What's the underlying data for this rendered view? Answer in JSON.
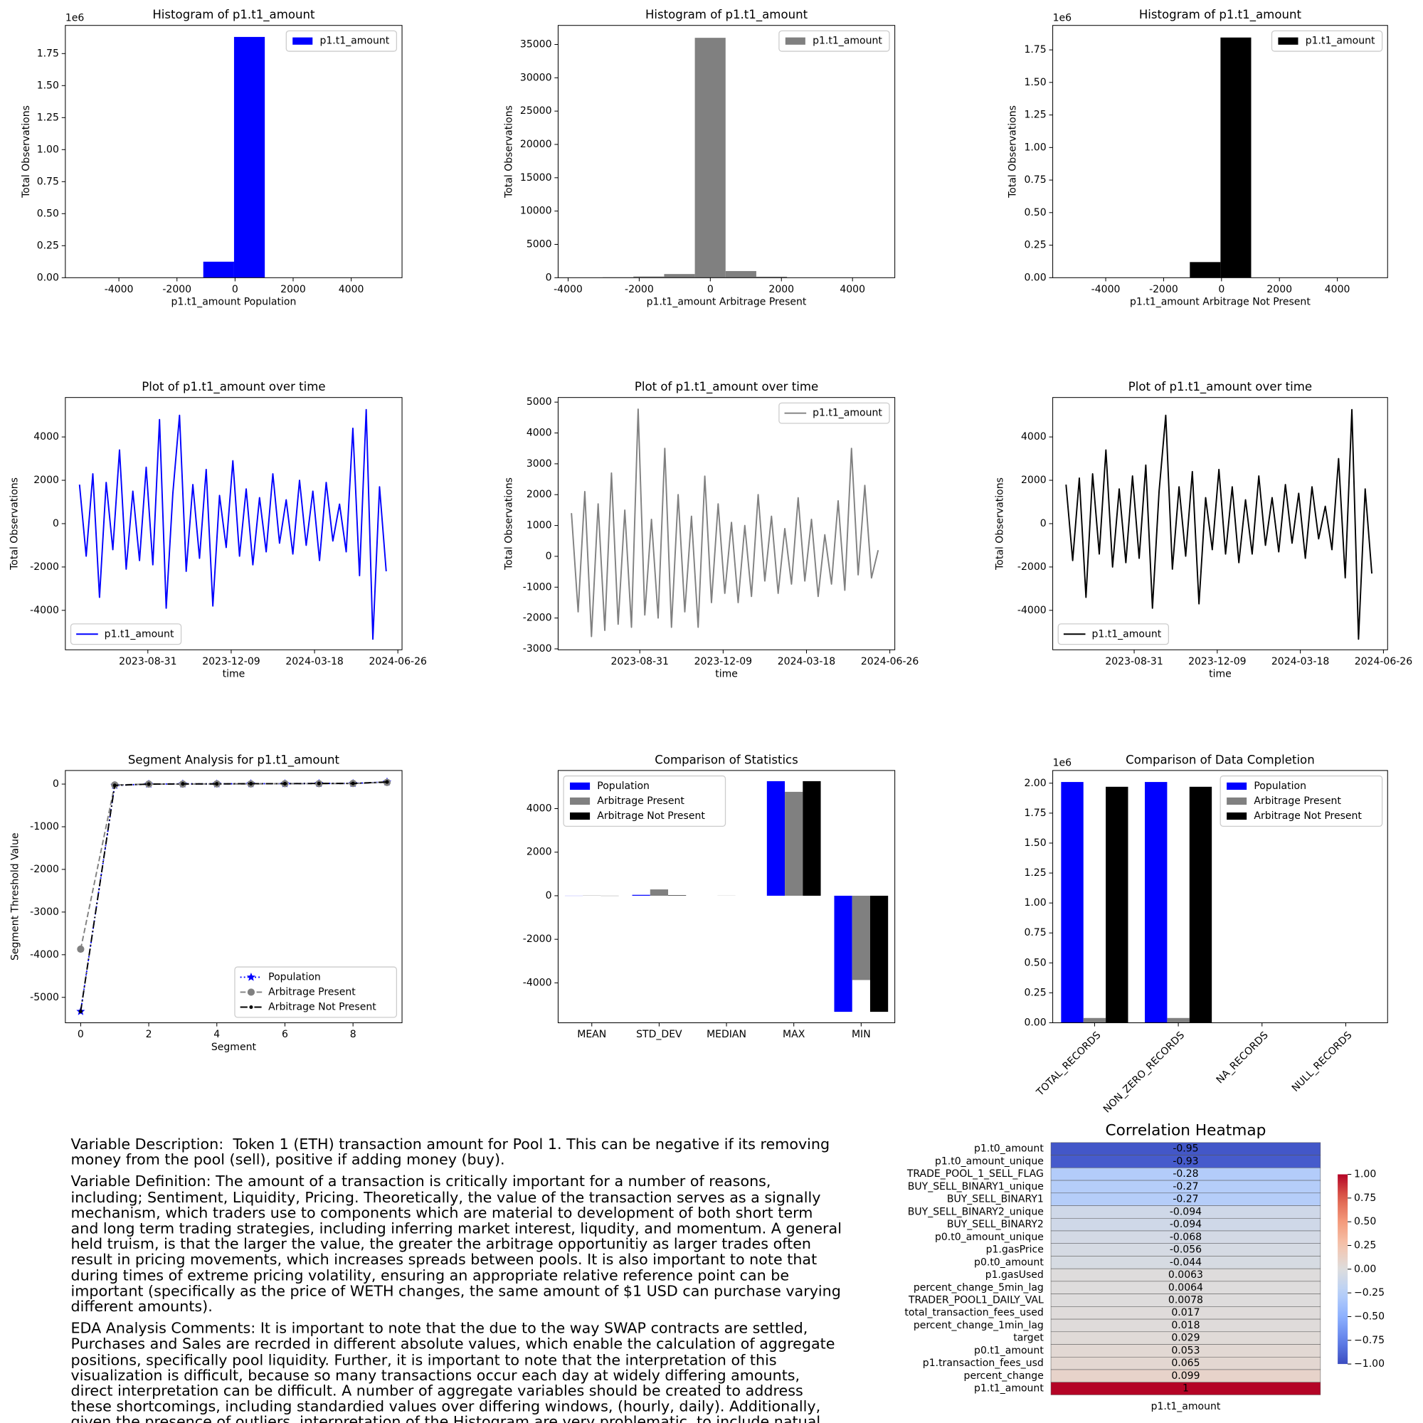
{
  "chart_data": [
    {
      "type": "histogram",
      "title": "Histogram of p1.t1_amount",
      "xlabel": "p1.t1_amount Population",
      "ylabel": "Total Observations",
      "bins": [
        -5330,
        -4271,
        -3212,
        -2153,
        -1094,
        -35,
        1024,
        2083,
        3142,
        4201,
        5260
      ],
      "series": [
        {
          "name": "p1.t1_amount",
          "color": "#0000ff",
          "values": [
            20,
            40,
            150,
            1200,
            125000,
            1880000,
            1500,
            200,
            40,
            20
          ]
        }
      ],
      "xlim": [
        -5844,
        5750
      ],
      "xticks": [
        -4000,
        -2000,
        0,
        2000,
        4000
      ],
      "ylim": [
        0,
        1970000
      ],
      "y_offset_label": "1e6",
      "yticks": [
        {
          "value": 0,
          "label": "0.00"
        },
        {
          "value": 250000,
          "label": "0.25"
        },
        {
          "value": 500000,
          "label": "0.50"
        },
        {
          "value": 750000,
          "label": "0.75"
        },
        {
          "value": 1000000,
          "label": "1.00"
        },
        {
          "value": 1250000,
          "label": "1.25"
        },
        {
          "value": 1500000,
          "label": "1.50"
        },
        {
          "value": 1750000,
          "label": "1.75"
        }
      ],
      "legend": "upper right"
    },
    {
      "type": "histogram",
      "title": "Histogram of p1.t1_amount",
      "xlabel": "p1.t1_amount Arbitrage Present",
      "ylabel": "Total Observations",
      "bins": [
        -3891,
        -3027,
        -2163,
        -1299,
        -435,
        429,
        1293,
        2157,
        3021,
        3885,
        4749
      ],
      "series": [
        {
          "name": "p1.t1_amount",
          "color": "#808080",
          "values": [
            20,
            60,
            180,
            550,
            36000,
            1000,
            150,
            30,
            10,
            5
          ]
        }
      ],
      "xlim": [
        -4281,
        5190
      ],
      "xticks": [
        -4000,
        -2000,
        0,
        2000,
        4000
      ],
      "ylim": [
        0,
        37860
      ],
      "yticks": [
        0,
        5000,
        10000,
        15000,
        20000,
        25000,
        30000,
        35000
      ],
      "legend": "upper right"
    },
    {
      "type": "histogram",
      "title": "Histogram of p1.t1_amount",
      "xlabel": "p1.t1_amount Arbitrage Not Present",
      "ylabel": "Total Observations",
      "bins": [
        -5330,
        -4271,
        -3212,
        -2153,
        -1094,
        -35,
        1024,
        2083,
        3142,
        4201,
        5260
      ],
      "series": [
        {
          "name": "p1.t1_amount",
          "color": "#000000",
          "values": [
            15,
            30,
            120,
            1000,
            120000,
            1845000,
            1200,
            150,
            30,
            15
          ]
        }
      ],
      "xlim": [
        -5830,
        5737
      ],
      "xticks": [
        -4000,
        -2000,
        0,
        2000,
        4000
      ],
      "ylim": [
        0,
        1938000
      ],
      "y_offset_label": "1e6",
      "yticks": [
        {
          "value": 0,
          "label": "0.00"
        },
        {
          "value": 250000,
          "label": "0.25"
        },
        {
          "value": 500000,
          "label": "0.50"
        },
        {
          "value": 750000,
          "label": "0.75"
        },
        {
          "value": 1000000,
          "label": "1.00"
        },
        {
          "value": 1250000,
          "label": "1.25"
        },
        {
          "value": 1500000,
          "label": "1.50"
        },
        {
          "value": 1750000,
          "label": "1.75"
        }
      ],
      "legend": "upper right"
    },
    {
      "type": "line",
      "title": "Plot of p1.t1_amount over time",
      "xlabel": "time",
      "ylabel": "Total Observations",
      "x": [
        "2023-06-10",
        "2023-06-18",
        "2023-06-26",
        "2023-07-04",
        "2023-07-12",
        "2023-07-20",
        "2023-07-28",
        "2023-08-05",
        "2023-08-13",
        "2023-08-21",
        "2023-08-29",
        "2023-09-06",
        "2023-09-14",
        "2023-09-22",
        "2023-09-30",
        "2023-10-08",
        "2023-10-16",
        "2023-10-24",
        "2023-11-01",
        "2023-11-09",
        "2023-11-17",
        "2023-11-25",
        "2023-12-03",
        "2023-12-11",
        "2023-12-19",
        "2023-12-27",
        "2024-01-04",
        "2024-01-12",
        "2024-01-20",
        "2024-01-28",
        "2024-02-05",
        "2024-02-13",
        "2024-02-21",
        "2024-02-29",
        "2024-03-08",
        "2024-03-16",
        "2024-03-24",
        "2024-04-01",
        "2024-04-09",
        "2024-04-17",
        "2024-04-25",
        "2024-05-03",
        "2024-05-11",
        "2024-05-19",
        "2024-05-27",
        "2024-06-04",
        "2024-06-12"
      ],
      "series": [
        {
          "name": "p1.t1_amount",
          "color": "#0000ff",
          "values": [
            1800,
            -1500,
            2300,
            -3400,
            1900,
            -1200,
            3400,
            -2100,
            1500,
            -1700,
            2600,
            -1900,
            4800,
            -3900,
            1400,
            5000,
            -2200,
            1800,
            -1600,
            2500,
            -3800,
            1300,
            -1100,
            2900,
            -1500,
            1600,
            -1900,
            1200,
            -1300,
            2300,
            -900,
            1100,
            -1400,
            2000,
            -1000,
            1500,
            -1700,
            1900,
            -800,
            900,
            -1300,
            4400,
            -2400,
            5260,
            -5330,
            1700,
            -2200
          ]
        }
      ],
      "xlim": [
        "2023-05-24",
        "2024-07-01"
      ],
      "xticks": [
        "2023-08-31",
        "2023-12-09",
        "2024-03-18",
        "2024-06-26"
      ],
      "ylim": [
        -5820,
        5820
      ],
      "yticks": [
        -4000,
        -2000,
        0,
        2000,
        4000
      ],
      "legend": "lower left"
    },
    {
      "type": "line",
      "title": "Plot of p1.t1_amount over time",
      "xlabel": "time",
      "ylabel": "Total Observations",
      "x": [
        "2023-06-10",
        "2023-06-18",
        "2023-06-26",
        "2023-07-04",
        "2023-07-12",
        "2023-07-20",
        "2023-07-28",
        "2023-08-05",
        "2023-08-13",
        "2023-08-21",
        "2023-08-29",
        "2023-09-06",
        "2023-09-14",
        "2023-09-22",
        "2023-09-30",
        "2023-10-08",
        "2023-10-16",
        "2023-10-24",
        "2023-11-01",
        "2023-11-09",
        "2023-11-17",
        "2023-11-25",
        "2023-12-03",
        "2023-12-11",
        "2023-12-19",
        "2023-12-27",
        "2024-01-04",
        "2024-01-12",
        "2024-01-20",
        "2024-01-28",
        "2024-02-05",
        "2024-02-13",
        "2024-02-21",
        "2024-02-29",
        "2024-03-08",
        "2024-03-16",
        "2024-03-24",
        "2024-04-01",
        "2024-04-09",
        "2024-04-17",
        "2024-04-25",
        "2024-05-03",
        "2024-05-11",
        "2024-05-19",
        "2024-05-27",
        "2024-06-04",
        "2024-06-12"
      ],
      "series": [
        {
          "name": "p1.t1_amount",
          "color": "#808080",
          "values": [
            1400,
            -1800,
            2100,
            -2600,
            1700,
            -2400,
            2700,
            -2200,
            1500,
            -2300,
            4770,
            -1900,
            1200,
            -2000,
            3500,
            -2300,
            2000,
            -1800,
            1300,
            -2300,
            2600,
            -1500,
            1700,
            -1200,
            1100,
            -1500,
            1000,
            -1300,
            2000,
            -800,
            1300,
            -1200,
            900,
            -900,
            1900,
            -800,
            1200,
            -1300,
            700,
            -900,
            1800,
            -1100,
            3500,
            -600,
            2300,
            -700,
            200
          ]
        }
      ],
      "xlim": [
        "2023-05-25",
        "2024-07-02"
      ],
      "xticks": [
        "2023-08-31",
        "2023-12-09",
        "2024-03-18",
        "2024-06-26"
      ],
      "ylim": [
        -3030,
        5150
      ],
      "yticks": [
        -3000,
        -2000,
        -1000,
        0,
        1000,
        2000,
        3000,
        4000,
        5000
      ],
      "legend": "upper right"
    },
    {
      "type": "line",
      "title": "Plot of p1.t1_amount over time",
      "xlabel": "time",
      "ylabel": "Total Observations",
      "x": [
        "2023-06-10",
        "2023-06-18",
        "2023-06-26",
        "2023-07-04",
        "2023-07-12",
        "2023-07-20",
        "2023-07-28",
        "2023-08-05",
        "2023-08-13",
        "2023-08-21",
        "2023-08-29",
        "2023-09-06",
        "2023-09-14",
        "2023-09-22",
        "2023-09-30",
        "2023-10-08",
        "2023-10-16",
        "2023-10-24",
        "2023-11-01",
        "2023-11-09",
        "2023-11-17",
        "2023-11-25",
        "2023-12-03",
        "2023-12-11",
        "2023-12-19",
        "2023-12-27",
        "2024-01-04",
        "2024-01-12",
        "2024-01-20",
        "2024-01-28",
        "2024-02-05",
        "2024-02-13",
        "2024-02-21",
        "2024-02-29",
        "2024-03-08",
        "2024-03-16",
        "2024-03-24",
        "2024-04-01",
        "2024-04-09",
        "2024-04-17",
        "2024-04-25",
        "2024-05-03",
        "2024-05-11",
        "2024-05-19",
        "2024-05-27",
        "2024-06-04",
        "2024-06-12"
      ],
      "series": [
        {
          "name": "p1.t1_amount",
          "color": "#000000",
          "values": [
            1800,
            -1700,
            2100,
            -3400,
            2300,
            -1400,
            3400,
            -2000,
            1600,
            -1800,
            2200,
            -1600,
            2700,
            -3900,
            1500,
            5000,
            -2100,
            1700,
            -1500,
            2400,
            -3700,
            1200,
            -1200,
            2500,
            -1400,
            1700,
            -1800,
            1100,
            -1400,
            2200,
            -1000,
            1200,
            -1300,
            1800,
            -900,
            1400,
            -1600,
            1700,
            -700,
            800,
            -1200,
            3000,
            -2500,
            5260,
            -5330,
            1600,
            -2300
          ]
        }
      ],
      "xlim": [
        "2023-05-25",
        "2024-07-01"
      ],
      "xticks": [
        "2023-08-31",
        "2023-12-09",
        "2024-03-18",
        "2024-06-26"
      ],
      "ylim": [
        -5820,
        5820
      ],
      "yticks": [
        -4000,
        -2000,
        0,
        2000,
        4000
      ],
      "legend": "lower left"
    },
    {
      "type": "line",
      "title": "Segment Analysis for p1.t1_amount",
      "xlabel": "Segment",
      "ylabel": "Segment Threshold Value",
      "x": [
        0,
        1,
        2,
        3,
        4,
        5,
        6,
        7,
        8,
        9
      ],
      "series": [
        {
          "name": "Population",
          "color": "#0000ff",
          "linestyle": "dotted",
          "marker": "star",
          "values": [
            -5330,
            -30,
            0,
            5,
            5,
            10,
            10,
            15,
            15,
            50
          ]
        },
        {
          "name": "Arbitrage Present",
          "color": "#808080",
          "linestyle": "dashed",
          "marker": "circle",
          "values": [
            -3870,
            -20,
            0,
            0,
            5,
            5,
            10,
            10,
            15,
            40
          ]
        },
        {
          "name": "Arbitrage Not Present",
          "color": "#000000",
          "linestyle": "dashdot",
          "marker": "point",
          "values": [
            -5330,
            -30,
            0,
            5,
            5,
            10,
            10,
            15,
            15,
            50
          ]
        }
      ],
      "xlim": [
        -0.45,
        9.44
      ],
      "xticks": [
        0,
        2,
        4,
        6,
        8
      ],
      "ylim": [
        -5596,
        319
      ],
      "yticks": [
        -5000,
        -4000,
        -3000,
        -2000,
        -1000,
        0
      ],
      "legend": "lower right"
    },
    {
      "type": "bar",
      "title": "Comparison of Statistics",
      "categories": [
        "MEAN",
        "STD_DEV",
        "MEDIAN",
        "MAX",
        "MIN"
      ],
      "series": [
        {
          "name": "Population",
          "color": "#0000ff",
          "values": [
            -5,
            40,
            0,
            5260,
            -5330
          ]
        },
        {
          "name": "Arbitrage Present",
          "color": "#808080",
          "values": [
            10,
            290,
            5,
            4770,
            -3870
          ]
        },
        {
          "name": "Arbitrage Not Present",
          "color": "#000000",
          "values": [
            -6,
            20,
            0,
            5260,
            -5330
          ]
        }
      ],
      "ylim": [
        -5833,
        5750
      ],
      "yticks": [
        -4000,
        -2000,
        0,
        2000,
        4000
      ],
      "legend": "upper left"
    },
    {
      "type": "bar",
      "title": "Comparison of Data Completion",
      "categories": [
        "TOTAL_RECORDS",
        "NON_ZERO_RECORDS",
        "NA_RECORDS",
        "NULL_RECORDS"
      ],
      "xtick_rotation": 45,
      "series": [
        {
          "name": "Population",
          "color": "#0000ff",
          "values": [
            2010000,
            2010000,
            0,
            0
          ]
        },
        {
          "name": "Arbitrage Present",
          "color": "#808080",
          "values": [
            40000,
            40000,
            0,
            0
          ]
        },
        {
          "name": "Arbitrage Not Present",
          "color": "#000000",
          "values": [
            1970000,
            1970000,
            0,
            0
          ]
        }
      ],
      "ylim": [
        0,
        2106000
      ],
      "y_offset_label": "1e6",
      "yticks": [
        {
          "value": 0,
          "label": "0.00"
        },
        {
          "value": 250000,
          "label": "0.25"
        },
        {
          "value": 500000,
          "label": "0.50"
        },
        {
          "value": 750000,
          "label": "0.75"
        },
        {
          "value": 1000000,
          "label": "1.00"
        },
        {
          "value": 1250000,
          "label": "1.25"
        },
        {
          "value": 1500000,
          "label": "1.50"
        },
        {
          "value": 1750000,
          "label": "1.75"
        },
        {
          "value": 2000000,
          "label": "2.00"
        }
      ],
      "legend": "upper right"
    },
    {
      "type": "heatmap",
      "title": "Correlation Heatmap",
      "colormap": "coolwarm",
      "rows": [
        "p1.t0_amount",
        "p1.t0_amount_unique",
        "TRADE_POOL_1_SELL_FLAG",
        "BUY_SELL_BINARY1_unique",
        "BUY_SELL_BINARY1",
        "BUY_SELL_BINARY2_unique",
        "BUY_SELL_BINARY2",
        "p0.t0_amount_unique",
        "p1.gasPrice",
        "p0.t0_amount",
        "p1.gasUsed",
        "percent_change_5min_lag",
        "TRADER_POOL1_DAILY_VAL",
        "total_transaction_fees_used",
        "percent_change_1min_lag",
        "target",
        "p0.t1_amount",
        "p1.transaction_fees_usd",
        "percent_change",
        "p1.t1_amount"
      ],
      "columns": [
        "p1.t1_amount"
      ],
      "values": [
        -0.95,
        -0.93,
        -0.28,
        -0.27,
        -0.27,
        -0.094,
        -0.094,
        -0.068,
        -0.056,
        -0.044,
        0.0063,
        0.0064,
        0.0078,
        0.017,
        0.018,
        0.029,
        0.053,
        0.065,
        0.099,
        1
      ],
      "clim": [
        -1,
        1
      ],
      "colorbar_ticks": [
        {
          "value": -1,
          "label": "−1.00"
        },
        {
          "value": -0.75,
          "label": "−0.75"
        },
        {
          "value": -0.5,
          "label": "−0.50"
        },
        {
          "value": -0.25,
          "label": "−0.25"
        },
        {
          "value": 0,
          "label": "0.00"
        },
        {
          "value": 0.25,
          "label": "0.25"
        },
        {
          "value": 0.5,
          "label": "0.50"
        },
        {
          "value": 0.75,
          "label": "0.75"
        },
        {
          "value": 1,
          "label": "1.00"
        }
      ]
    }
  ],
  "notes": {
    "variable_description": "Variable Description:  Token 1 (ETH) transaction amount for Pool 1. This can be negative if its removing money from the pool (sell), positive if adding money (buy).",
    "variable_definition": "Variable Definition: The amount of a transaction is critically important for a number of reasons, including; Sentiment, Liquidity, Pricing. Theoretically, the value of the transaction serves as a signally mechanism, which traders use to components which are material to development of both short term and long term trading strategies, including inferring market interest, liqudity, and momentum. A general held truism, is that the larger the value, the greater the arbitrage opportunitiy as larger trades often result in pricing movements, which increases spreads between pools. It is also important to note that during times of extreme pricing volatility, ensuring an appropriate relative reference point can be important (specifically as the price of WETH changes, the same amount of $1 USD can purchase varying different amounts).",
    "eda_comments": "EDA Analysis Comments: It is important to note that the due to the way SWAP contracts are settled, Purchases and Sales are recrded in different absolute values, which enable the calculation of aggregate positions, specifically pool liquidity. Further, it is important to note that the interpretation of this visualization is difficult, because so many transactions occur each day at widely differing amounts, direct interpretation can be difficult. A number of aggregate variables should be created to address these shortcomings, including standardied values over differing windows, (hourly, daily). Additionally, given the presence of outliers, interpretation of the Histogram are very problematic, to include natual log of variable to increase interpretability."
  }
}
